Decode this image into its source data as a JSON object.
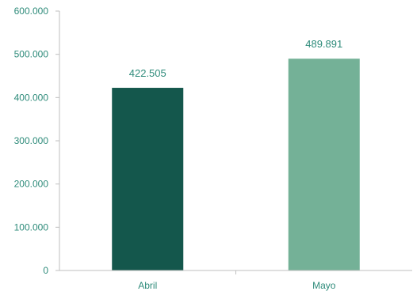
{
  "chart_data": {
    "type": "bar",
    "categories": [
      "Abril",
      "Mayo"
    ],
    "values": [
      422505,
      489891
    ],
    "value_labels": [
      "422.505",
      "489.891"
    ],
    "yticks": [
      0,
      100000,
      200000,
      300000,
      400000,
      500000,
      600000
    ],
    "ytick_labels": [
      "0",
      "100.000",
      "200.000",
      "300.000",
      "400.000",
      "500.000",
      "600.000"
    ],
    "ylim": [
      0,
      600000
    ],
    "grid": false,
    "colors": [
      "#14574c",
      "#74b197"
    ],
    "label_color": "#2e8b7a",
    "axis_color": "#bfbfbf"
  }
}
